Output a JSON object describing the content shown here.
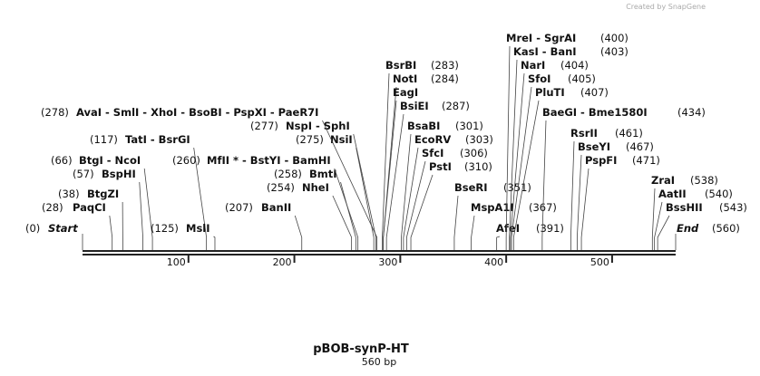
{
  "credit": "Created by SnapGene",
  "title": "pBOB-synP-HT",
  "subtitle": "560 bp",
  "map": {
    "xlim": [
      0,
      560
    ],
    "ticks": [
      100,
      200,
      300,
      400,
      500
    ],
    "sites": [
      {
        "name": "Start",
        "position": 0,
        "position_label": "(0)"
      },
      {
        "name": "PaqCI",
        "position": 28,
        "position_label": "(28)"
      },
      {
        "name": "BtgZI",
        "position": 38,
        "position_label": "(38)"
      },
      {
        "name": "BspHI",
        "position": 57,
        "position_label": "(57)"
      },
      {
        "name": "BtgI  -  NcoI",
        "position": 66,
        "position_label": "(66)"
      },
      {
        "name": "TatI  -  BsrGI",
        "position": 117,
        "position_label": "(117)"
      },
      {
        "name": "MslI",
        "position": 125,
        "position_label": "(125)"
      },
      {
        "name": "BanII",
        "position": 207,
        "position_label": "(207)"
      },
      {
        "name": "NheI",
        "position": 254,
        "position_label": "(254)"
      },
      {
        "name": "BmtI",
        "position": 258,
        "position_label": "(258)"
      },
      {
        "name": "MfII *  -  BstYI  -  BamHI",
        "position": 260,
        "position_label": "(260)"
      },
      {
        "name": "NsiI",
        "position": 275,
        "position_label": "(275)"
      },
      {
        "name": "NspI  -  SphI",
        "position": 277,
        "position_label": "(277)"
      },
      {
        "name": "AvaI  -  SmlI  -  XhoI  -  BsoBI  -  PspXI  -  PaeR7I",
        "position": 278,
        "position_label": "(278)"
      },
      {
        "name": "BsrBI",
        "position": 283,
        "position_label": "(283)"
      },
      {
        "name": "NotI",
        "position": 284,
        "position_label": "(284)"
      },
      {
        "name": "EagI"
      },
      {
        "name": "BsiEI",
        "position": 287,
        "position_label": "(287)"
      },
      {
        "name": "BsaBI",
        "position": 301,
        "position_label": "(301)"
      },
      {
        "name": "EcoRV",
        "position": 303,
        "position_label": "(303)"
      },
      {
        "name": "SfcI",
        "position": 306,
        "position_label": "(306)"
      },
      {
        "name": "PstI",
        "position": 310,
        "position_label": "(310)"
      },
      {
        "name": "BseRI",
        "position": 351,
        "position_label": "(351)"
      },
      {
        "name": "MspA1I",
        "position": 367,
        "position_label": "(367)"
      },
      {
        "name": "AfeI",
        "position": 391,
        "position_label": "(391)"
      },
      {
        "name": "MreI  -  SgrAI",
        "position": 400,
        "position_label": "(400)"
      },
      {
        "name": "KasI  -  BanI",
        "position": 403,
        "position_label": "(403)"
      },
      {
        "name": "NarI",
        "position": 404,
        "position_label": "(404)"
      },
      {
        "name": "SfoI",
        "position": 405,
        "position_label": "(405)"
      },
      {
        "name": "PluTI",
        "position": 407,
        "position_label": "(407)"
      },
      {
        "name": "BaeGI  -  Bme1580I",
        "position": 434,
        "position_label": "(434)"
      },
      {
        "name": "RsrII",
        "position": 461,
        "position_label": "(461)"
      },
      {
        "name": "BseYI",
        "position": 467,
        "position_label": "(467)"
      },
      {
        "name": "PspFI",
        "position": 471,
        "position_label": "(471)"
      },
      {
        "name": "ZraI",
        "position": 538,
        "position_label": "(538)"
      },
      {
        "name": "AatII",
        "position": 540,
        "position_label": "(540)"
      },
      {
        "name": "BssHII",
        "position": 543,
        "position_label": "(543)"
      },
      {
        "name": "End",
        "position": 560,
        "position_label": "(560)"
      }
    ]
  }
}
